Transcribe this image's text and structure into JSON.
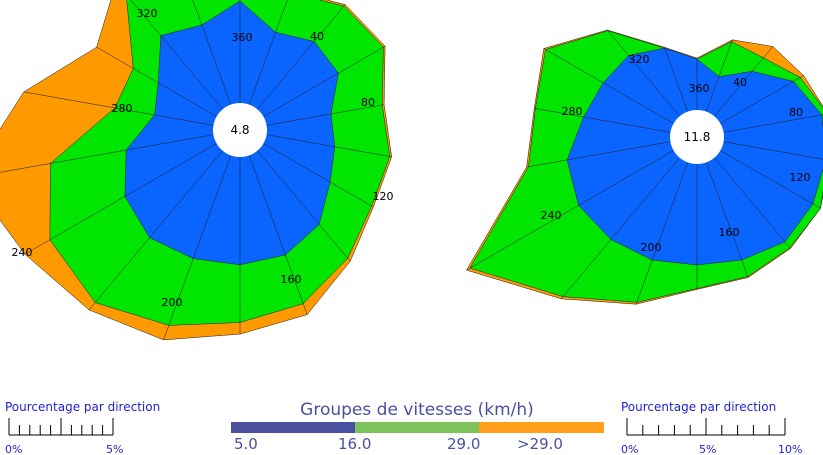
{
  "colors": {
    "bin1": "#0a64ff",
    "bin2": "#00e600",
    "bin3": "#ff9900",
    "legend1": "#4b4fa0",
    "legend2": "#7cc45a",
    "legend3": "#ff9f1c",
    "scale_text": "#1f1fd6"
  },
  "chart_data": [
    {
      "type": "wind-rose",
      "center_label": "4.8",
      "direction_labels": [
        "40",
        "80",
        "120",
        "160",
        "200",
        "240",
        "280",
        "320",
        "360"
      ],
      "directions": [
        0,
        20,
        40,
        60,
        80,
        100,
        120,
        140,
        160,
        180,
        200,
        220,
        240,
        260,
        280,
        300,
        320,
        340
      ],
      "max_percent": 5,
      "series": [
        {
          "bin": "5.0-16.0",
          "values": [
            2.65,
            2.0,
            2.3,
            2.25,
            1.7,
            1.8,
            2.0,
            2.5,
            2.75,
            2.8,
            2.85,
            2.95,
            2.75,
            2.3,
            1.55,
            1.75,
            2.5,
            2.2
          ]
        },
        {
          "bin": "16.0-29.0",
          "values": [
            2.8,
            3.1,
            3.5,
            3.6,
            3.05,
            3.25,
            3.25,
            3.65,
            4.1,
            4.3,
            4.7,
            5.15,
            5.0,
            4.3,
            2.6,
            2.5,
            3.9,
            3.4
          ]
        },
        {
          "bin": "29.0+",
          "values": [
            2.85,
            3.15,
            3.55,
            3.65,
            3.1,
            3.3,
            3.3,
            3.75,
            4.4,
            4.6,
            5.1,
            5.4,
            5.75,
            6.45,
            5.0,
            3.6,
            4.3,
            3.5
          ]
        }
      ]
    },
    {
      "type": "wind-rose",
      "center_label": "11.8",
      "direction_labels": [
        "40",
        "80",
        "120",
        "160",
        "200",
        "240",
        "280",
        "320",
        "360"
      ],
      "directions": [
        0,
        20,
        40,
        60,
        80,
        100,
        120,
        140,
        160,
        180,
        200,
        220,
        240,
        260,
        280,
        300,
        320,
        340
      ],
      "max_percent": 10,
      "series": [
        {
          "bin": "5.0-16.0",
          "values": [
            2.6,
            1.9,
            3.0,
            4.3,
            5.1,
            5.3,
            5.45,
            5.6,
            5.3,
            5.15,
            5.3,
            5.45,
            5.6,
            5.35,
            4.5,
            4.15,
            4.05,
            3.45
          ]
        },
        {
          "bin": "16.0-29.0",
          "values": [
            2.6,
            3.8,
            3.9,
            4.7,
            5.4,
            5.4,
            5.9,
            6.0,
            6.2,
            6.35,
            7.6,
            9.25,
            12.0,
            7.35,
            7.0,
            7.55,
            5.7,
            3.45
          ]
        },
        {
          "bin": "29.0+",
          "values": [
            2.65,
            3.9,
            4.65,
            4.9,
            5.4,
            5.5,
            5.9,
            6.05,
            6.25,
            6.4,
            7.7,
            9.4,
            12.2,
            7.45,
            7.05,
            7.65,
            5.75,
            3.5
          ]
        }
      ]
    }
  ],
  "legend": {
    "title": "Groupes de vitesses (km/h)",
    "values": [
      "5.0",
      "16.0",
      "29.0",
      ">29.0"
    ]
  },
  "scales": [
    {
      "title": "Pourcentage par direction",
      "ticks": [
        "0%",
        "5%"
      ]
    },
    {
      "title": "Pourcentage par direction",
      "ticks": [
        "0%",
        "5%",
        "10%"
      ]
    }
  ]
}
